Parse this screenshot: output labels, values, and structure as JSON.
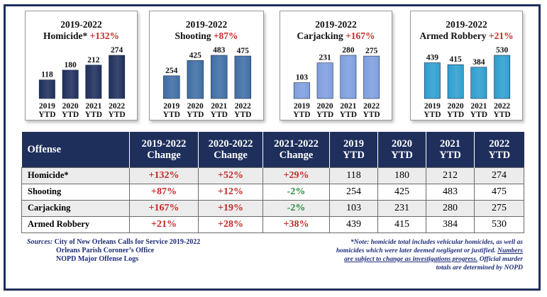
{
  "charts": [
    {
      "period": "2019-2022",
      "offense": "Homicide*",
      "change": "+132%",
      "categories": [
        "2019 YTD",
        "2020 YTD",
        "2021 YTD",
        "2022 YTD"
      ],
      "values": [
        118,
        180,
        212,
        274
      ],
      "bar_color": "#1f2f5c"
    },
    {
      "period": "2019-2022",
      "offense": "Shooting",
      "change": "+87%",
      "categories": [
        "2019 YTD",
        "2020 YTD",
        "2021 YTD",
        "2022 YTD"
      ],
      "values": [
        254,
        425,
        483,
        475
      ],
      "bar_color": "#3f6ea5"
    },
    {
      "period": "2019-2022",
      "offense": "Carjacking",
      "change": "+167%",
      "categories": [
        "2019 YTD",
        "2020 YTD",
        "2021 YTD",
        "2022 YTD"
      ],
      "values": [
        103,
        231,
        280,
        275
      ],
      "bar_color": "#7e9ede"
    },
    {
      "period": "2019-2022",
      "offense": "Armed Robbery",
      "change": "+21%",
      "categories": [
        "2019 YTD",
        "2020 YTD",
        "2021 YTD",
        "2022 YTD"
      ],
      "values": [
        439,
        415,
        384,
        530
      ],
      "bar_color": "#2e9ecf"
    }
  ],
  "chart_data": [
    {
      "type": "bar",
      "title": "2019-2022 Homicide* +132%",
      "categories": [
        "2019 YTD",
        "2020 YTD",
        "2021 YTD",
        "2022 YTD"
      ],
      "values": [
        118,
        180,
        212,
        274
      ]
    },
    {
      "type": "bar",
      "title": "2019-2022 Shooting +87%",
      "categories": [
        "2019 YTD",
        "2020 YTD",
        "2021 YTD",
        "2022 YTD"
      ],
      "values": [
        254,
        425,
        483,
        475
      ]
    },
    {
      "type": "bar",
      "title": "2019-2022 Carjacking +167%",
      "categories": [
        "2019 YTD",
        "2020 YTD",
        "2021 YTD",
        "2022 YTD"
      ],
      "values": [
        103,
        231,
        280,
        275
      ]
    },
    {
      "type": "bar",
      "title": "2019-2022 Armed Robbery +21%",
      "categories": [
        "2019 YTD",
        "2020 YTD",
        "2021 YTD",
        "2022 YTD"
      ],
      "values": [
        439,
        415,
        384,
        530
      ]
    },
    {
      "type": "table",
      "columns": [
        "Offense",
        "2019-2022 Change",
        "2020-2022 Change",
        "2021-2022 Change",
        "2019 YTD",
        "2020 YTD",
        "2021 YTD",
        "2022 YTD"
      ],
      "rows": [
        [
          "Homicide*",
          "+132%",
          "+52%",
          "+29%",
          118,
          180,
          212,
          274
        ],
        [
          "Shooting",
          "+87%",
          "+12%",
          "-2%",
          254,
          425,
          483,
          475
        ],
        [
          "Carjacking",
          "+167%",
          "+19%",
          "-2%",
          103,
          231,
          280,
          275
        ],
        [
          "Armed Robbery",
          "+21%",
          "+28%",
          "+38%",
          439,
          415,
          384,
          530
        ]
      ]
    }
  ],
  "table": {
    "headers": {
      "offense": "Offense",
      "c1a": "2019-2022",
      "c1b": "Change",
      "c2a": "2020-2022",
      "c2b": "Change",
      "c3a": "2021-2022",
      "c3b": "Change",
      "y1a": "2019",
      "y1b": "YTD",
      "y2a": "2020",
      "y2b": "YTD",
      "y3a": "2021",
      "y3b": "YTD",
      "y4a": "2022",
      "y4b": "YTD"
    },
    "rows": [
      {
        "offense": "Homicide*",
        "c1": "+132%",
        "c2": "+52%",
        "c3": "+29%",
        "y2019": "118",
        "y2020": "180",
        "y2021": "212",
        "y2022": "274"
      },
      {
        "offense": "Shooting",
        "c1": "+87%",
        "c2": "+12%",
        "c3": "-2%",
        "y2019": "254",
        "y2020": "425",
        "y2021": "483",
        "y2022": "475"
      },
      {
        "offense": "Carjacking",
        "c1": "+167%",
        "c2": "+19%",
        "c3": "-2%",
        "y2019": "103",
        "y2020": "231",
        "y2021": "280",
        "y2022": "275"
      },
      {
        "offense": "Armed Robbery",
        "c1": "+21%",
        "c2": "+28%",
        "c3": "+38%",
        "y2019": "439",
        "y2020": "415",
        "y2021": "384",
        "y2022": "530"
      }
    ]
  },
  "sources": {
    "label": "Sources:",
    "line1": "City of New Orleans Calls for Service 2019-2022",
    "line2": "Orleans Parish Coroner’s Office",
    "line3": "NOPD Major Offense Logs"
  },
  "note": {
    "part1": "*Note: homicide total includes vehicular homicides, as well as homicides which were later deemed negligent or justified.",
    "part2": "Numbers are subject to change as investigations progress.",
    "part3": "Official murder totals are determined by NOPD"
  },
  "colors": {
    "header_navy": "#1f2f5c",
    "increase_red": "#c62828",
    "decrease_green": "#2e8b3a"
  }
}
